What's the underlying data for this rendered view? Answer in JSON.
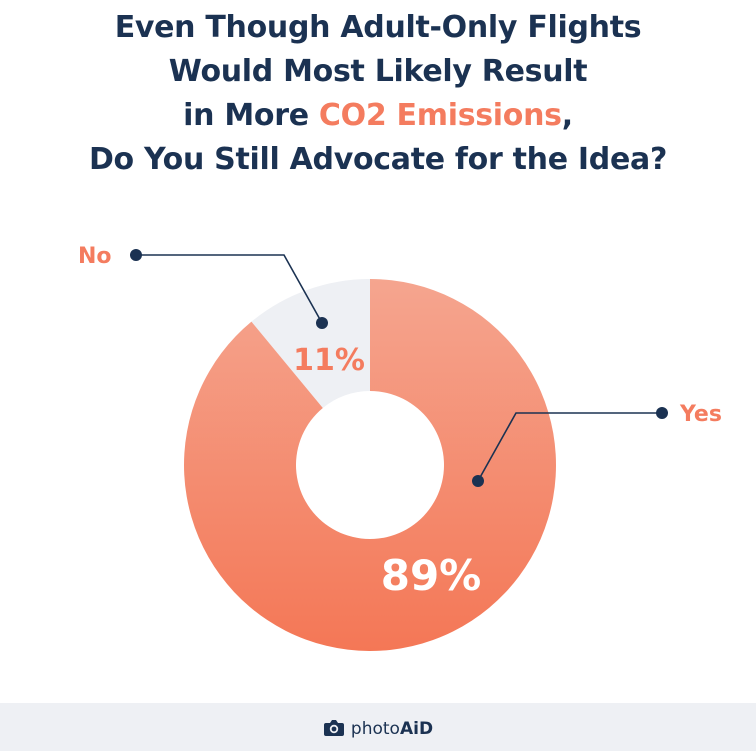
{
  "title": {
    "line1": "Even Though Adult-Only Flights",
    "line2": "Would Most Likely Result",
    "line3_pre": "in More ",
    "line3_highlight": "CO2 Emissions",
    "line3_post": ",",
    "line4": "Do You Still Advocate for the Idea?"
  },
  "colors": {
    "title": "#1b3252",
    "highlight": "#f47c5f",
    "yes_top": "#f5a58f",
    "yes_bottom": "#f47756",
    "no": "#eef0f4",
    "leader": "#1b3252"
  },
  "chart_data": {
    "type": "pie",
    "variant": "donut",
    "slices": [
      {
        "label": "No",
        "value": 11,
        "display": "11%"
      },
      {
        "label": "Yes",
        "value": 89,
        "display": "89%"
      }
    ]
  },
  "footer": {
    "brand_main": "photo",
    "brand_accent": "AiD",
    "logo_icon": "camera-icon"
  }
}
